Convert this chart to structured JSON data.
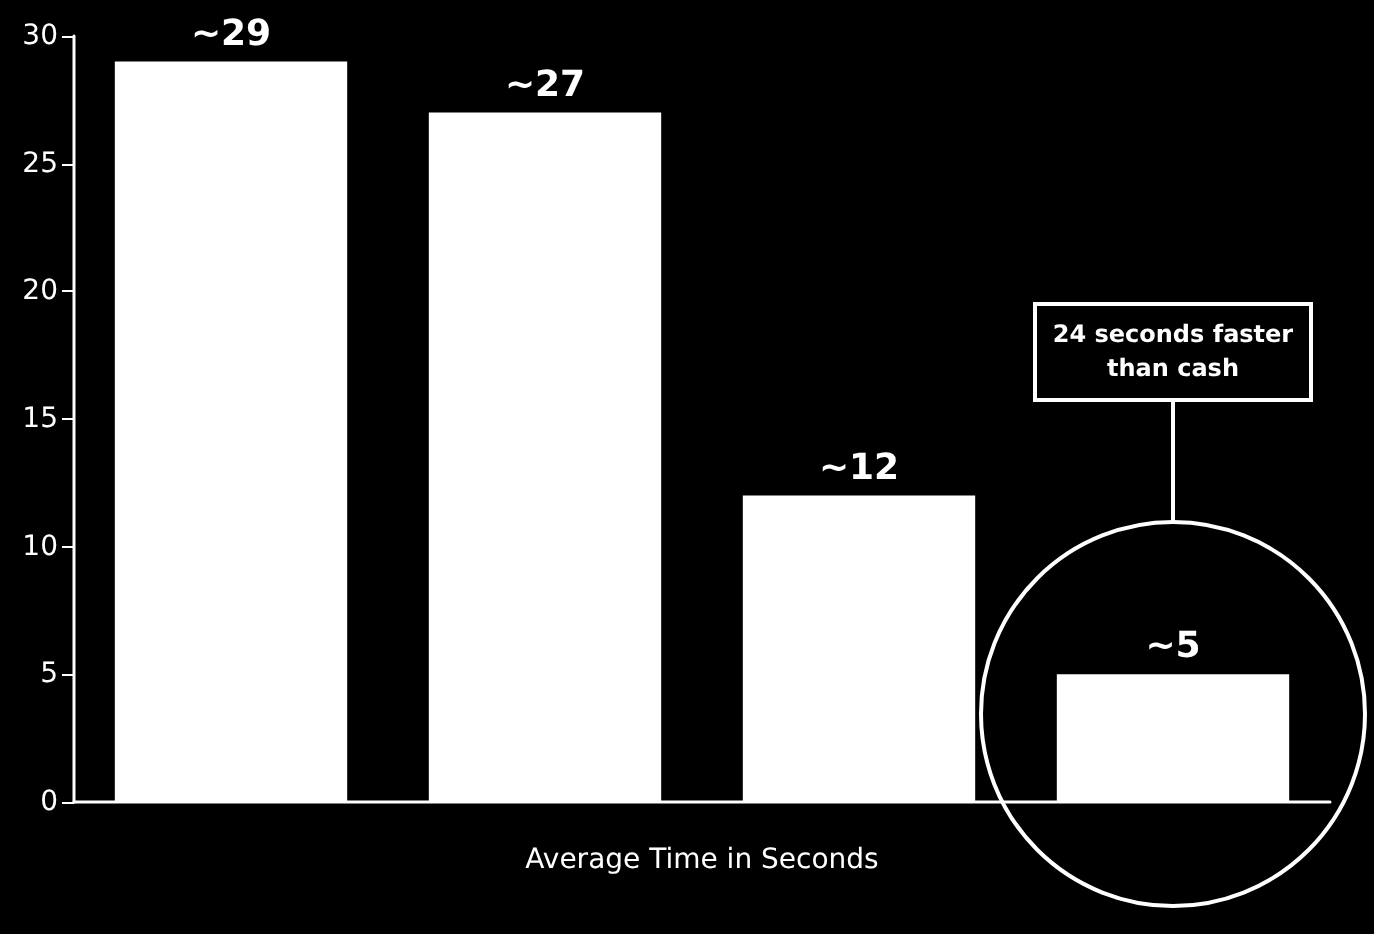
{
  "chart_data": {
    "type": "bar",
    "xlabel": "Average Time in Seconds",
    "categories": [
      null,
      null,
      null,
      null
    ],
    "values": [
      29,
      27,
      12,
      5
    ],
    "color": "#ffffff",
    "value_labels": [
      "~29",
      "~27",
      "~12",
      "~5"
    ],
    "ylim": [
      0,
      30
    ],
    "yticks": [
      0,
      5,
      10,
      15,
      20,
      25,
      30
    ],
    "annotations": [
      "24 seconds faster than cash"
    ]
  }
}
